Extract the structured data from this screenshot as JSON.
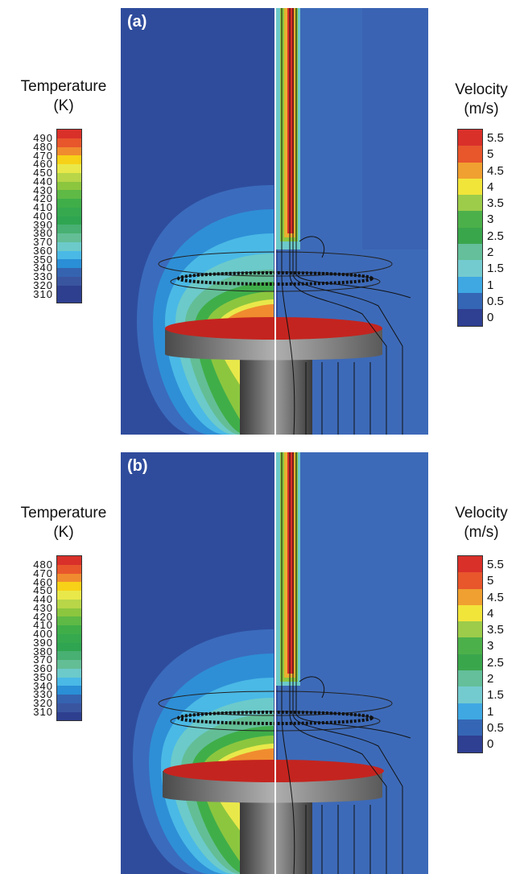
{
  "panels": [
    {
      "label": "(a)",
      "temperature": {
        "title_line1": "Temperature",
        "title_line2": "(K)",
        "ticks": [
          "490",
          "480",
          "470",
          "460",
          "450",
          "440",
          "430",
          "420",
          "410",
          "400",
          "390",
          "380",
          "370",
          "360",
          "350",
          "340",
          "330",
          "320",
          "310"
        ]
      },
      "velocity": {
        "title_line1": "Velocity",
        "title_line2": "(m/s)",
        "ticks": [
          "5.5",
          "5",
          "4.5",
          "4",
          "3.5",
          "3",
          "2.5",
          "2",
          "1.5",
          "1",
          "0.5",
          "0"
        ]
      }
    },
    {
      "label": "(b)",
      "temperature": {
        "title_line1": "Temperature",
        "title_line2": "(K)",
        "ticks": [
          "480",
          "470",
          "460",
          "450",
          "440",
          "430",
          "420",
          "410",
          "400",
          "390",
          "380",
          "370",
          "360",
          "350",
          "340",
          "330",
          "320",
          "310"
        ]
      },
      "velocity": {
        "title_line1": "Velocity",
        "title_line2": "(m/s)",
        "ticks": [
          "5.5",
          "5",
          "4.5",
          "4",
          "3.5",
          "3",
          "2.5",
          "2",
          "1.5",
          "1",
          "0.5",
          "0"
        ]
      }
    }
  ],
  "colors": {
    "temperature_scale": [
      "#d9302a",
      "#e8562c",
      "#f08c2f",
      "#f7d117",
      "#e9e84a",
      "#b8d648",
      "#8cc63f",
      "#5eb945",
      "#3fae49",
      "#36a94f",
      "#2fa551",
      "#48b072",
      "#63be96",
      "#6ccaca",
      "#4ab9e6",
      "#2a8fd6",
      "#3563b0",
      "#3a55a0",
      "#2e3f8f"
    ],
    "velocity_scale": [
      "#d9302a",
      "#e8562c",
      "#f0a030",
      "#f2e53a",
      "#9dcc4a",
      "#4cb04a",
      "#3aa64c",
      "#64bf9a",
      "#74cbcf",
      "#3fa8e3",
      "#3566b5",
      "#2f3f92"
    ],
    "background_field": "#2e4d9a"
  }
}
